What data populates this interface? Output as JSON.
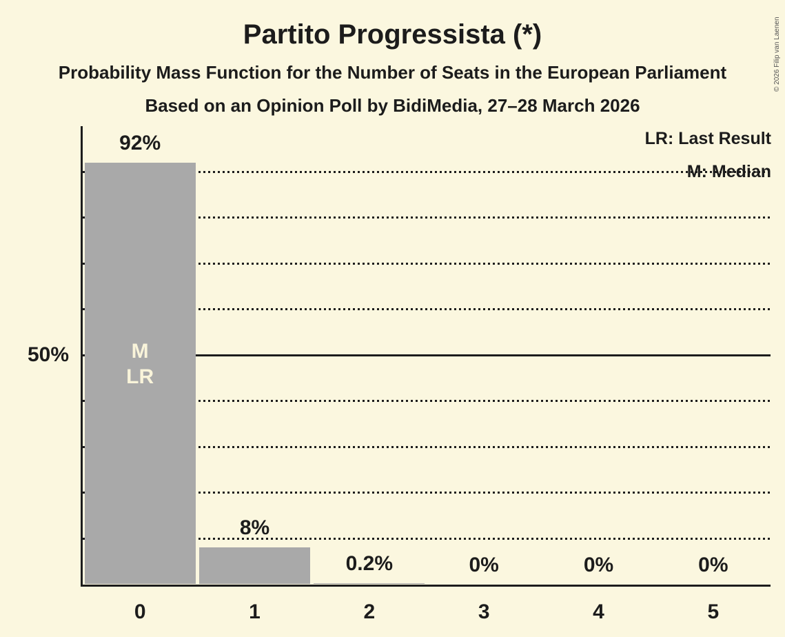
{
  "title": "Partito Progressista (*)",
  "subtitle1": "Probability Mass Function for the Number of Seats in the European Parliament",
  "subtitle2": "Based on an Opinion Poll by BidiMedia, 27–28 March 2026",
  "legend": {
    "last_result": "LR: Last Result",
    "median": "M: Median"
  },
  "copyright": "© 2026 Filip van Laenen",
  "y_axis_label": "50%",
  "annotations": {
    "median_label": "M",
    "last_result_label": "LR"
  },
  "colors": {
    "background": "#FBF7DF",
    "bar": "#A9A9A9",
    "text": "#1C1C1C",
    "bar_annotation": "#F9F4DA"
  },
  "chart_data": {
    "type": "bar",
    "title": "Partito Progressista (*)",
    "categories": [
      "0",
      "1",
      "2",
      "3",
      "4",
      "5"
    ],
    "values": [
      92,
      8,
      0.2,
      0,
      0,
      0
    ],
    "value_labels": [
      "92%",
      "8%",
      "0.2%",
      "0%",
      "0%",
      "0%"
    ],
    "xlabel": "",
    "ylabel": "",
    "ylim": [
      0,
      100
    ],
    "grid": {
      "dotted_every_percent": 10,
      "solid_at_percent": 50
    },
    "legend_position": "top-right",
    "median_seat_index": 0,
    "last_result_seat_index": 0
  }
}
